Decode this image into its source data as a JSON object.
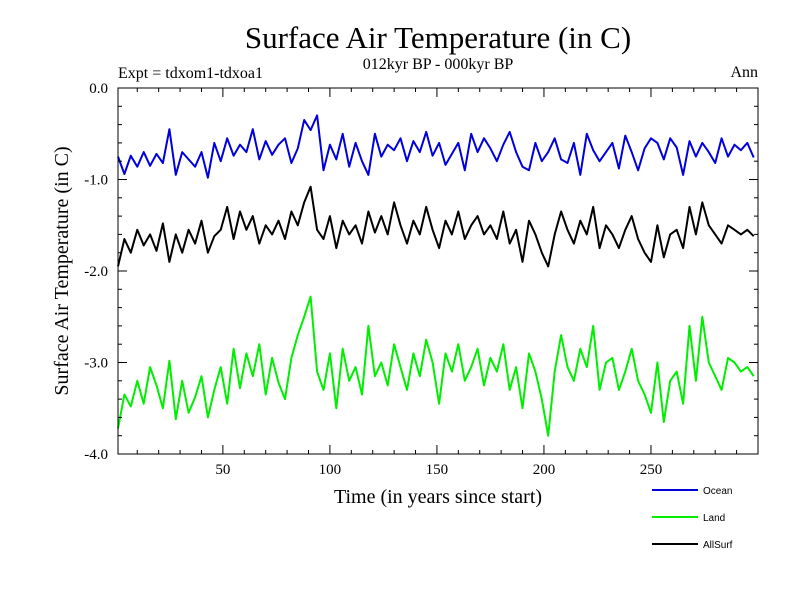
{
  "chart_data": {
    "type": "line",
    "title": "Surface Air Temperature (in C)",
    "subtitle": "012kyr BP - 000kyr BP",
    "experiment": "Expt = tdxom1-tdxoa1",
    "season": "Ann",
    "xlabel": "Time (in years since start)",
    "ylabel": "Surface Air Temperature (in C)",
    "xlim": [
      1,
      300
    ],
    "ylim": [
      -4.0,
      0.0
    ],
    "xticks": [
      50,
      100,
      150,
      200,
      250
    ],
    "xtick_labels": [
      "50",
      "100",
      "150",
      "200",
      "250"
    ],
    "yticks": [
      0.0,
      -1.0,
      -2.0,
      -3.0,
      -4.0
    ],
    "ytick_labels": [
      "0.0",
      "-1.0",
      "-2.0",
      "-3.0",
      "-4.0"
    ],
    "legend_position": "bottom-right",
    "series": [
      {
        "name": "Ocean",
        "color": "#0000dd",
        "x_start": 1,
        "x_step": 3,
        "values": [
          -0.75,
          -0.94,
          -0.74,
          -0.86,
          -0.7,
          -0.85,
          -0.72,
          -0.82,
          -0.45,
          -0.95,
          -0.7,
          -0.78,
          -0.86,
          -0.7,
          -0.98,
          -0.6,
          -0.8,
          -0.55,
          -0.74,
          -0.62,
          -0.7,
          -0.45,
          -0.78,
          -0.58,
          -0.73,
          -0.62,
          -0.55,
          -0.82,
          -0.66,
          -0.35,
          -0.46,
          -0.3,
          -0.9,
          -0.62,
          -0.78,
          -0.5,
          -0.86,
          -0.6,
          -0.8,
          -0.95,
          -0.5,
          -0.75,
          -0.62,
          -0.68,
          -0.55,
          -0.8,
          -0.58,
          -0.7,
          -0.48,
          -0.74,
          -0.6,
          -0.84,
          -0.72,
          -0.6,
          -0.9,
          -0.5,
          -0.7,
          -0.55,
          -0.66,
          -0.8,
          -0.62,
          -0.48,
          -0.7,
          -0.86,
          -0.9,
          -0.6,
          -0.8,
          -0.7,
          -0.55,
          -0.78,
          -0.82,
          -0.6,
          -0.95,
          -0.5,
          -0.68,
          -0.8,
          -0.7,
          -0.6,
          -0.88,
          -0.52,
          -0.7,
          -0.9,
          -0.66,
          -0.55,
          -0.6,
          -0.78,
          -0.55,
          -0.65,
          -0.95,
          -0.58,
          -0.75,
          -0.6,
          -0.7,
          -0.82,
          -0.55,
          -0.75,
          -0.62,
          -0.68,
          -0.6,
          -0.76
        ]
      },
      {
        "name": "Land",
        "color": "#00ee00",
        "x_start": 1,
        "x_step": 3,
        "values": [
          -3.72,
          -3.35,
          -3.48,
          -3.2,
          -3.45,
          -3.05,
          -3.25,
          -3.5,
          -2.98,
          -3.62,
          -3.2,
          -3.55,
          -3.38,
          -3.15,
          -3.6,
          -3.3,
          -3.05,
          -3.45,
          -2.85,
          -3.28,
          -2.9,
          -3.15,
          -2.8,
          -3.35,
          -2.95,
          -3.22,
          -3.4,
          -2.95,
          -2.7,
          -2.5,
          -2.28,
          -3.1,
          -3.3,
          -2.9,
          -3.5,
          -2.85,
          -3.2,
          -3.05,
          -3.35,
          -2.6,
          -3.15,
          -3.0,
          -3.25,
          -2.8,
          -3.05,
          -3.3,
          -2.9,
          -3.15,
          -2.75,
          -3.0,
          -3.45,
          -2.9,
          -3.1,
          -2.8,
          -3.2,
          -3.05,
          -2.85,
          -3.25,
          -2.95,
          -3.1,
          -2.8,
          -3.3,
          -3.05,
          -3.5,
          -2.9,
          -3.1,
          -3.4,
          -3.8,
          -3.1,
          -2.7,
          -3.05,
          -3.2,
          -2.85,
          -3.05,
          -2.6,
          -3.3,
          -3.0,
          -2.95,
          -3.3,
          -3.1,
          -2.85,
          -3.2,
          -3.35,
          -3.55,
          -3.0,
          -3.65,
          -3.2,
          -3.1,
          -3.45,
          -2.6,
          -3.2,
          -2.5,
          -3.0,
          -3.15,
          -3.3,
          -2.95,
          -3.0,
          -3.1,
          -3.05,
          -3.15
        ]
      },
      {
        "name": "AllSurf",
        "color": "#000000",
        "x_start": 1,
        "x_step": 3,
        "values": [
          -1.95,
          -1.65,
          -1.8,
          -1.55,
          -1.72,
          -1.6,
          -1.78,
          -1.48,
          -1.9,
          -1.6,
          -1.8,
          -1.55,
          -1.7,
          -1.45,
          -1.8,
          -1.62,
          -1.55,
          -1.3,
          -1.65,
          -1.35,
          -1.55,
          -1.4,
          -1.7,
          -1.5,
          -1.6,
          -1.45,
          -1.65,
          -1.35,
          -1.5,
          -1.25,
          -1.08,
          -1.55,
          -1.65,
          -1.4,
          -1.75,
          -1.45,
          -1.6,
          -1.5,
          -1.7,
          -1.35,
          -1.58,
          -1.4,
          -1.6,
          -1.25,
          -1.5,
          -1.7,
          -1.45,
          -1.6,
          -1.3,
          -1.55,
          -1.75,
          -1.45,
          -1.6,
          -1.35,
          -1.65,
          -1.5,
          -1.4,
          -1.6,
          -1.5,
          -1.65,
          -1.35,
          -1.7,
          -1.55,
          -1.9,
          -1.45,
          -1.6,
          -1.8,
          -1.95,
          -1.6,
          -1.35,
          -1.55,
          -1.7,
          -1.45,
          -1.6,
          -1.3,
          -1.75,
          -1.5,
          -1.6,
          -1.75,
          -1.55,
          -1.4,
          -1.65,
          -1.8,
          -1.9,
          -1.5,
          -1.85,
          -1.6,
          -1.55,
          -1.75,
          -1.3,
          -1.6,
          -1.25,
          -1.5,
          -1.6,
          -1.7,
          -1.5,
          -1.55,
          -1.6,
          -1.55,
          -1.62
        ]
      }
    ]
  }
}
